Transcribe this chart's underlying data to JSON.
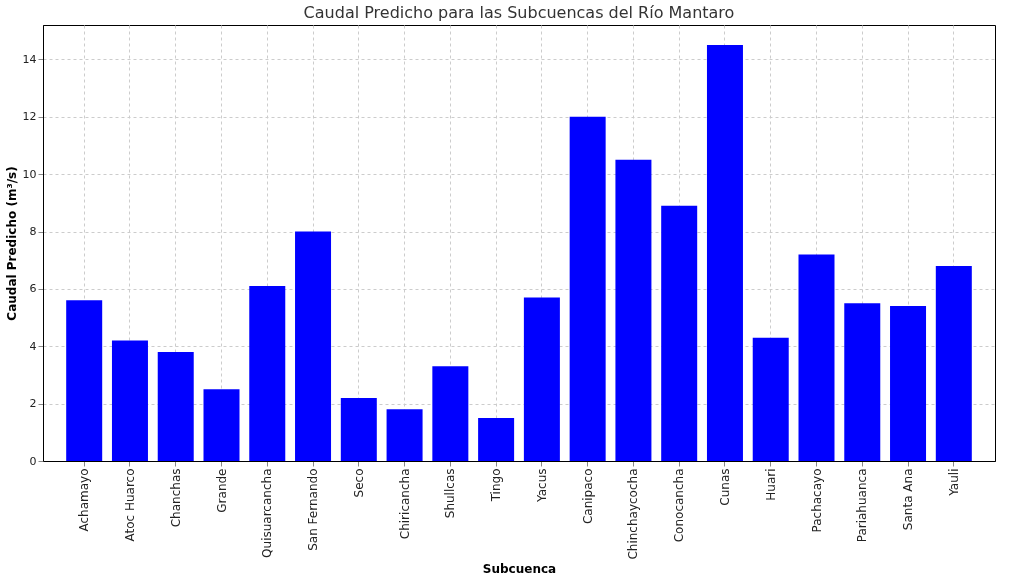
{
  "chart_data": {
    "type": "bar",
    "title": "Caudal Predicho para las Subcuencas del Río Mantaro",
    "xlabel": "Subcuenca",
    "ylabel": "Caudal Predicho (m³/s)",
    "categories": [
      "Achamayo",
      "Atoc Huarco",
      "Chanchas",
      "Grande",
      "Quisuarcancha",
      "San Fernando",
      "Seco",
      "Chiricancha",
      "Shullcas",
      "Tingo",
      "Yacus",
      "Canipaco",
      "Chinchaycocha",
      "Conocancha",
      "Cunas",
      "Huari",
      "Pachacayo",
      "Pariahuanca",
      "Santa Ana",
      "Yauli"
    ],
    "values": [
      5.6,
      4.2,
      3.8,
      2.5,
      6.1,
      8.0,
      2.2,
      1.8,
      3.3,
      1.5,
      5.7,
      12.0,
      10.5,
      8.9,
      14.5,
      4.3,
      7.2,
      5.5,
      5.4,
      6.8
    ],
    "color": "#0000ff",
    "ylim": [
      0,
      15.2
    ],
    "yticks": [
      0,
      2,
      4,
      6,
      8,
      10,
      12,
      14
    ],
    "grid": true
  }
}
